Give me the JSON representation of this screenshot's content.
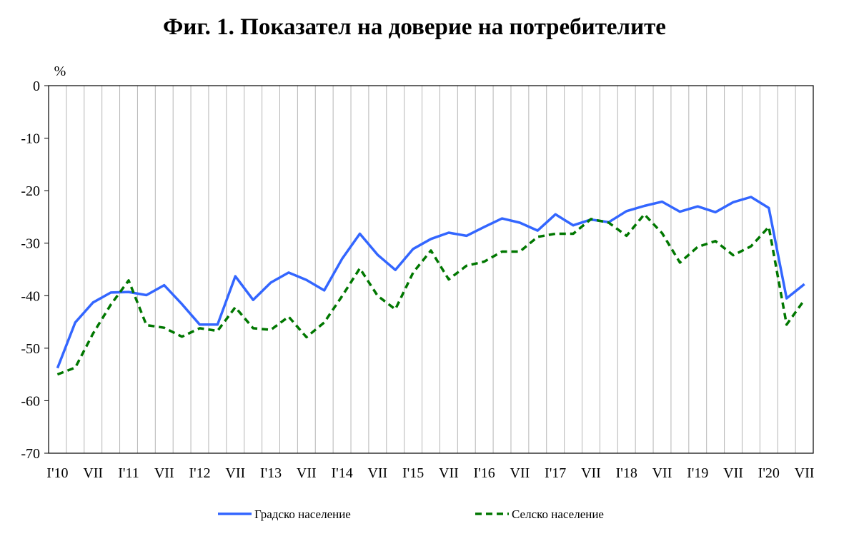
{
  "chart_data": {
    "type": "line",
    "title": "Фиг. 1. Показател на доверие на потребителите",
    "ylabel": "%",
    "xlabel": "",
    "ylim": [
      -70,
      0
    ],
    "yticks": [
      0,
      -10,
      -20,
      -30,
      -40,
      -50,
      -60,
      -70
    ],
    "grid": "vertical",
    "legend": "bottom",
    "x": [
      "I'10",
      "IV'10",
      "VII'10",
      "X'10",
      "I'11",
      "IV'11",
      "VII'11",
      "X'11",
      "I'12",
      "IV'12",
      "VII'12",
      "X'12",
      "I'13",
      "IV'13",
      "VII'13",
      "X'13",
      "I'14",
      "IV'14",
      "VII'14",
      "X'14",
      "I'15",
      "IV'15",
      "VII'15",
      "X'15",
      "I'16",
      "IV'16",
      "VII'16",
      "X'16",
      "I'17",
      "IV'17",
      "VII'17",
      "X'17",
      "I'18",
      "IV'18",
      "VII'18",
      "X'18",
      "I'19",
      "IV'19",
      "VII'19",
      "X'19",
      "I'20",
      "IV'20",
      "VII'20"
    ],
    "xtick_labels": [
      "I'10",
      "VII",
      "I'11",
      "VII",
      "I'12",
      "VII",
      "I'13",
      "VII",
      "I'14",
      "VII",
      "I'15",
      "VII",
      "I'16",
      "VII",
      "I'17",
      "VII",
      "I'18",
      "VII",
      "I'19",
      "VII",
      "I'20",
      "VII"
    ],
    "series": [
      {
        "name": "Градско население",
        "color": "#3366ff",
        "dash": "solid",
        "values": [
          -53.8,
          -45.1,
          -41.3,
          -39.4,
          -39.3,
          -39.9,
          -38.0,
          -41.6,
          -45.5,
          -45.5,
          -36.3,
          -40.8,
          -37.5,
          -35.6,
          -37.0,
          -39.0,
          -33.0,
          -28.2,
          -32.2,
          -35.1,
          -31.1,
          -29.2,
          -28.0,
          -28.6,
          -26.9,
          -25.3,
          -26.1,
          -27.6,
          -24.5,
          -26.6,
          -25.5,
          -26.0,
          -23.9,
          -22.9,
          -22.1,
          -24.0,
          -23.0,
          -24.1,
          -22.2,
          -21.2,
          -23.3,
          -40.5,
          -37.8
        ]
      },
      {
        "name": "Селско население",
        "color": "#007700",
        "dash": "dashed",
        "values": [
          -55.0,
          -53.7,
          -47.2,
          -41.7,
          -37.1,
          -45.6,
          -46.1,
          -47.8,
          -46.2,
          -46.7,
          -42.2,
          -46.2,
          -46.5,
          -44.0,
          -47.9,
          -45.1,
          -40.1,
          -34.8,
          -40.0,
          -42.6,
          -35.6,
          -31.4,
          -36.9,
          -34.3,
          -33.5,
          -31.6,
          -31.6,
          -28.8,
          -28.2,
          -28.2,
          -25.4,
          -26.1,
          -28.6,
          -24.5,
          -28.1,
          -33.7,
          -30.7,
          -29.6,
          -32.3,
          -30.6,
          -26.9,
          -45.5,
          -40.8
        ]
      }
    ]
  }
}
